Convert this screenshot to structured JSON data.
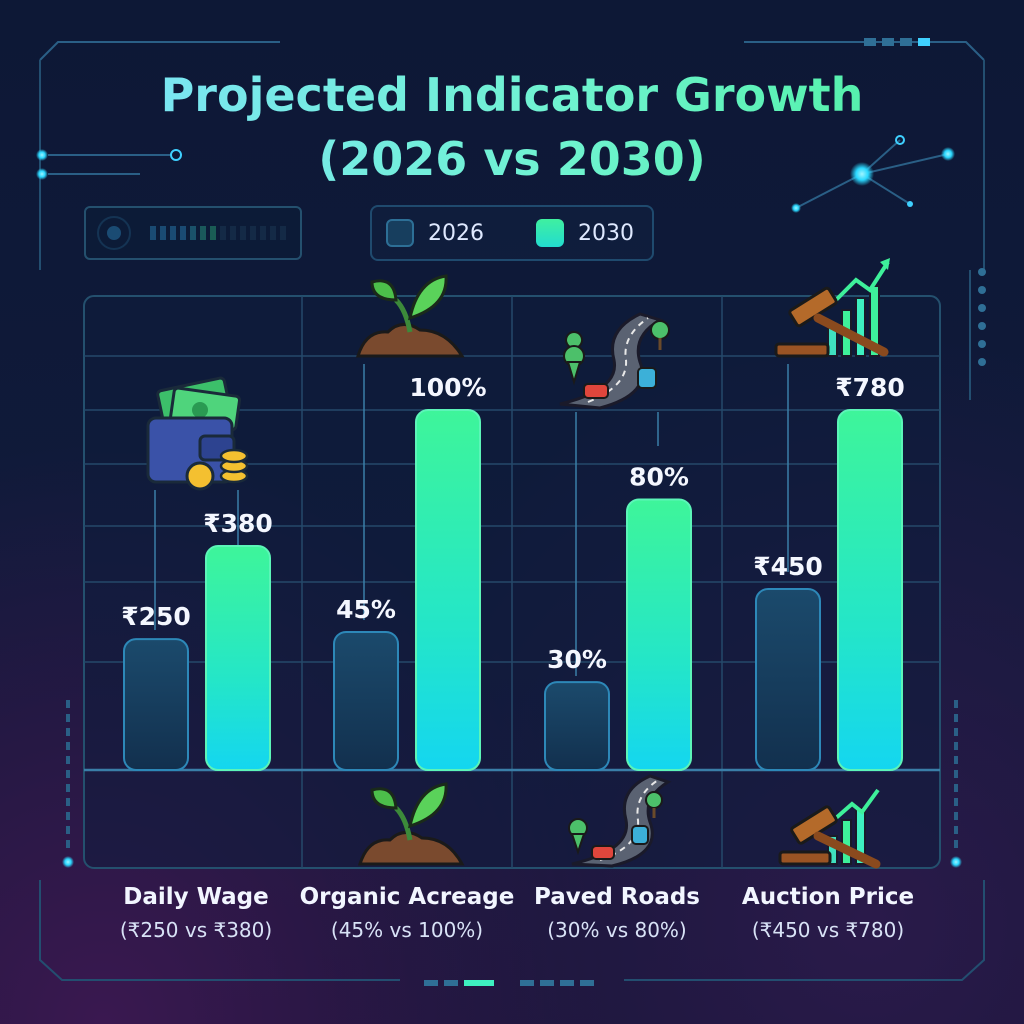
{
  "title_line1": "Projected Indicator Growth",
  "title_line2": "(2026 vs 2030)",
  "colors": {
    "series_2026": "#173e5e",
    "series_2030": "#2ff0b0",
    "accent": "#3ee6ff"
  },
  "chart_data": {
    "type": "bar",
    "title": "Projected Indicator Growth (2026 vs 2030)",
    "legend_position": "top-center",
    "grid": true,
    "categories": [
      "Daily Wage",
      "Organic Acreage",
      "Paved Roads",
      "Auction Price"
    ],
    "subtitles": [
      "(₹250 vs ₹380)",
      "(45% vs 100%)",
      "(30% vs 80%)",
      "(₹450 vs ₹780)"
    ],
    "icons": [
      "wallet-money-icon",
      "sprout-icon",
      "road-icon",
      "gavel-chart-icon"
    ],
    "series": [
      {
        "name": "2026",
        "values": [
          250,
          45,
          30,
          450
        ],
        "labels": [
          "₹250",
          "45%",
          "30%",
          "₹450"
        ],
        "relative": [
          0.36,
          0.38,
          0.24,
          0.5
        ]
      },
      {
        "name": "2030",
        "values": [
          380,
          100,
          80,
          780
        ],
        "labels": [
          "₹380",
          "100%",
          "80%",
          "₹780"
        ],
        "relative": [
          0.62,
          1.0,
          0.75,
          1.0
        ]
      }
    ]
  }
}
